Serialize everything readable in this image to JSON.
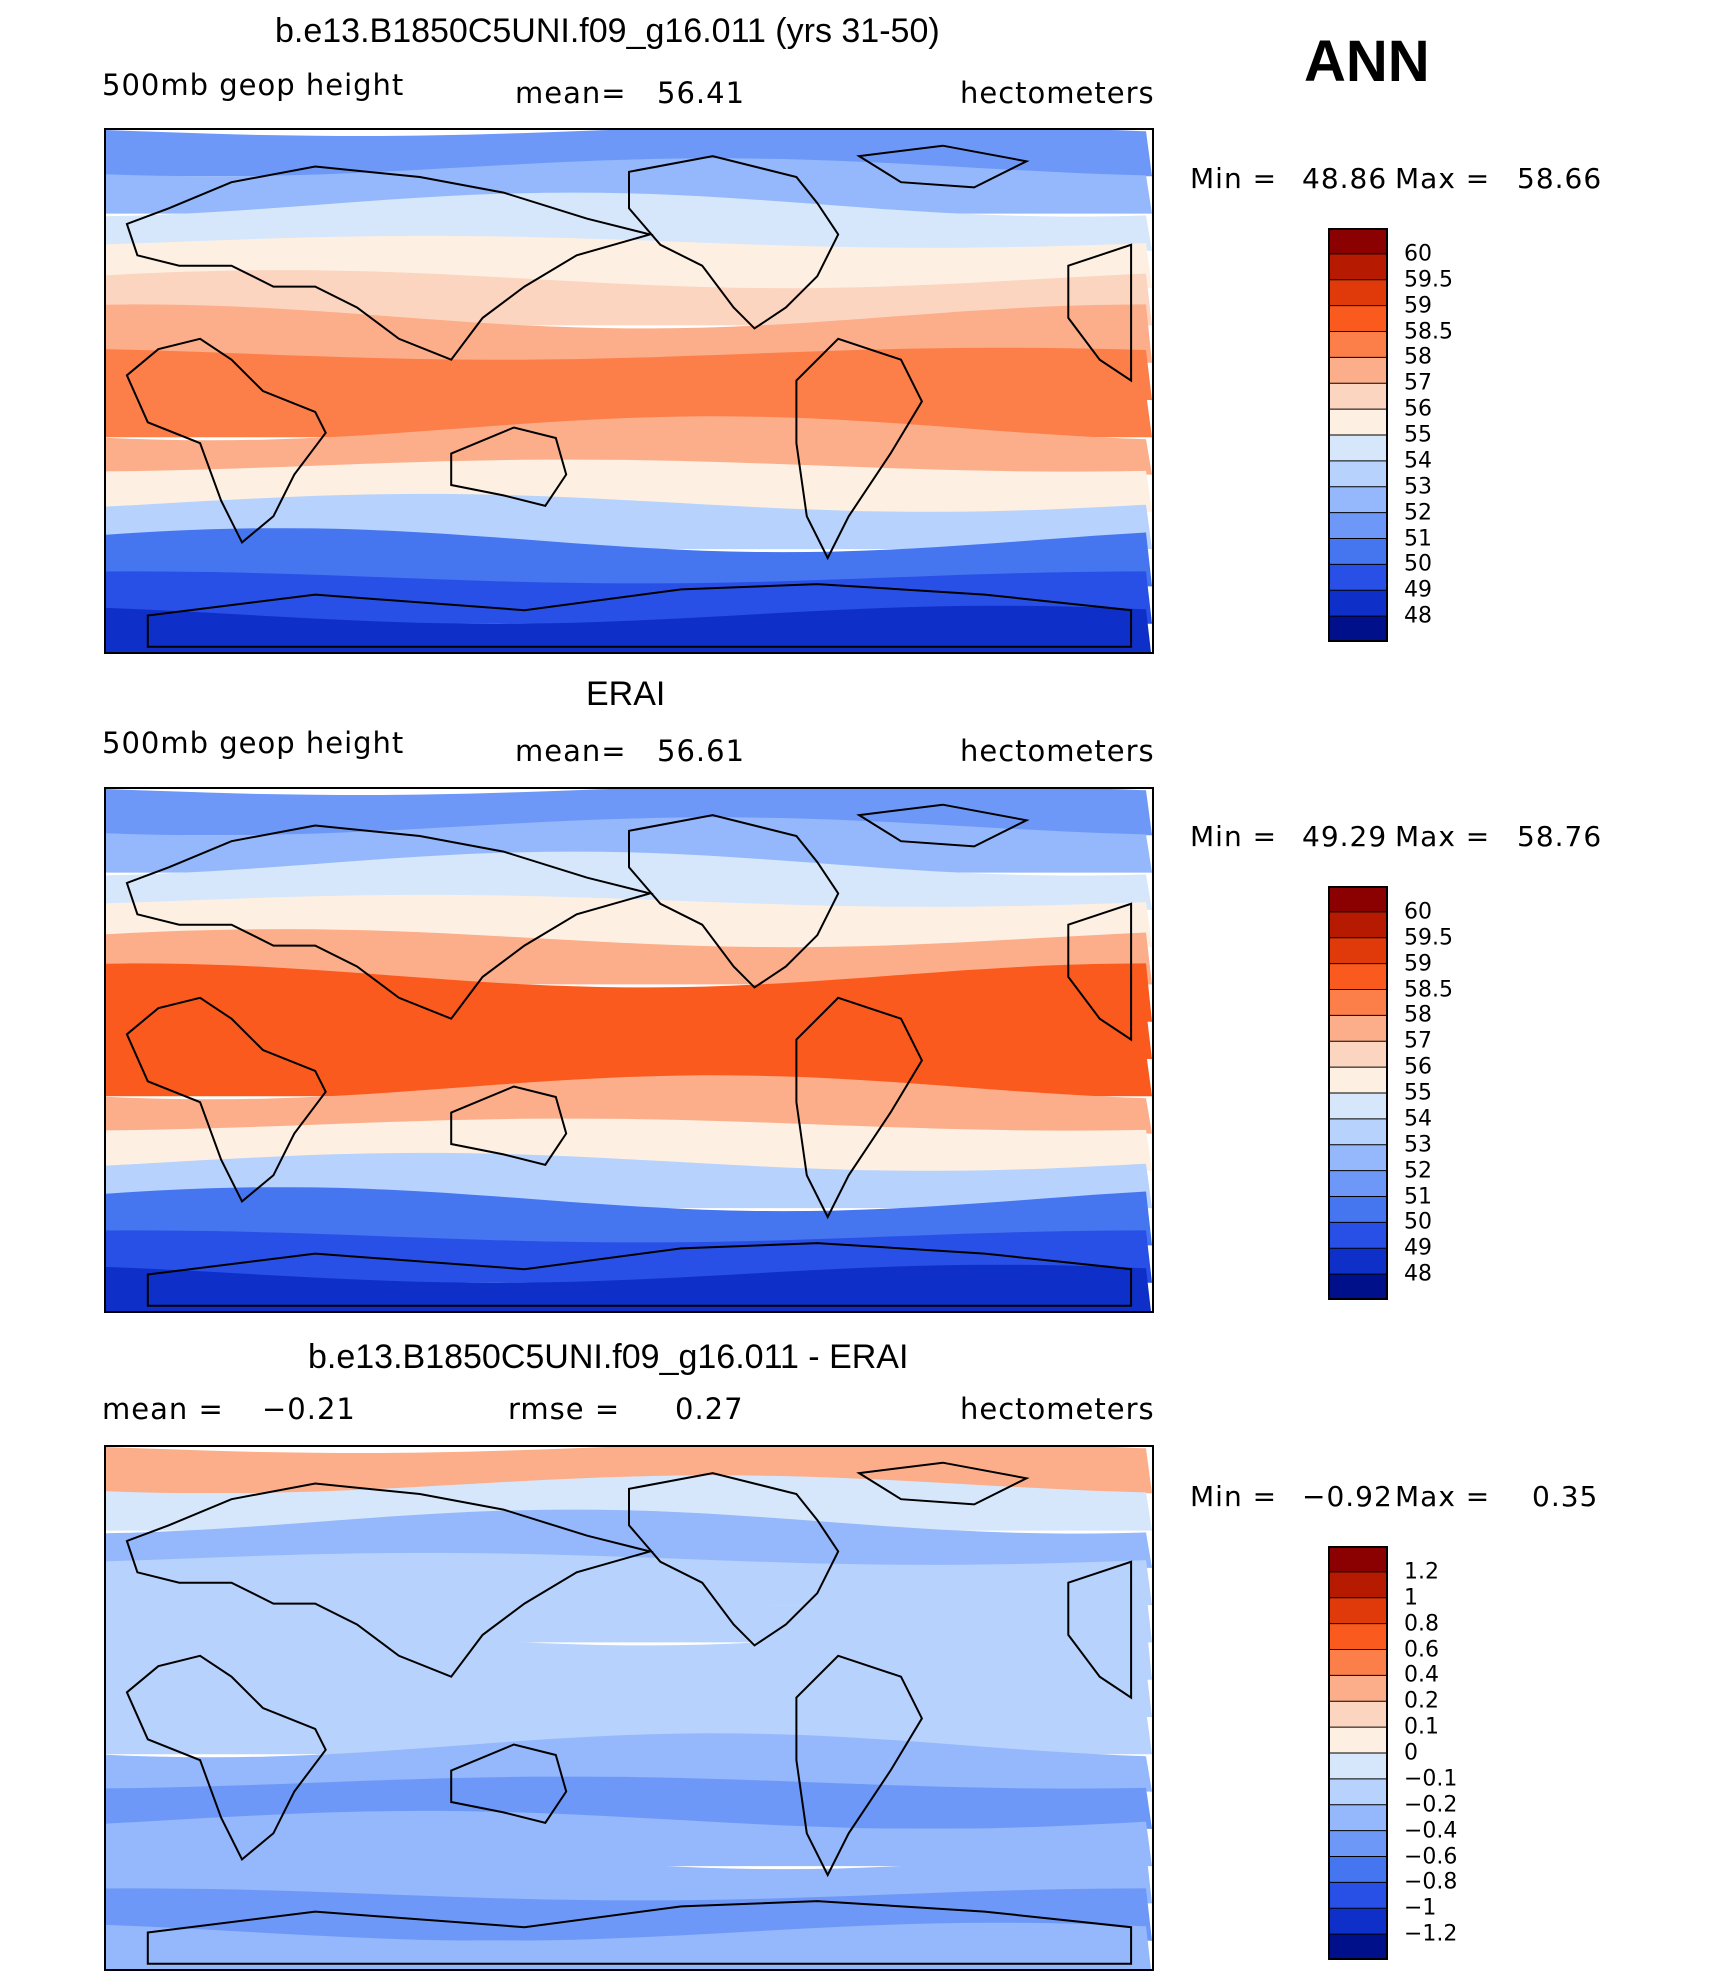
{
  "season": "ANN",
  "chart_data": [
    {
      "type": "heatmap",
      "title": "b.e13.B1850C5UNI.f09_g16.011 (yrs 31-50)",
      "variable": "500mb geop height",
      "mean_label": "mean=",
      "mean": "56.41",
      "units": "hectometers",
      "min_label": "Min =",
      "min": "48.86",
      "max_label": "Max =",
      "max": "58.66",
      "colorbar_levels": [
        "60",
        "59.5",
        "59",
        "58.5",
        "58",
        "57",
        "56",
        "55",
        "54",
        "53",
        "52",
        "51",
        "50",
        "49",
        "48"
      ],
      "colorbar_colors": [
        "#8b0000",
        "#b61a00",
        "#e03a0a",
        "#fb5a1e",
        "#fc7f4a",
        "#fcae8a",
        "#fcd5c0",
        "#fdf0e2",
        "#d6e7fb",
        "#b7d2fc",
        "#94b8fb",
        "#6d98f7",
        "#4675f0",
        "#2850e6",
        "#0f30c8",
        "#00108a"
      ],
      "band_colors": [
        "#6d98f7",
        "#94b8fb",
        "#d6e7fb",
        "#fdf0e2",
        "#fcd5c0",
        "#fcae8a",
        "#fc7f4a",
        "#fc7f4a",
        "#fcae8a",
        "#fdf0e2",
        "#b7d2fc",
        "#4675f0",
        "#2850e6",
        "#0f30c8"
      ]
    },
    {
      "type": "heatmap",
      "title": "ERAI",
      "variable": "500mb geop height",
      "mean_label": "mean=",
      "mean": "56.61",
      "units": "hectometers",
      "min_label": "Min =",
      "min": "49.29",
      "max_label": "Max =",
      "max": "58.76",
      "colorbar_levels": [
        "60",
        "59.5",
        "59",
        "58.5",
        "58",
        "57",
        "56",
        "55",
        "54",
        "53",
        "52",
        "51",
        "50",
        "49",
        "48"
      ],
      "colorbar_colors": [
        "#8b0000",
        "#b61a00",
        "#e03a0a",
        "#fb5a1e",
        "#fc7f4a",
        "#fcae8a",
        "#fcd5c0",
        "#fdf0e2",
        "#d6e7fb",
        "#b7d2fc",
        "#94b8fb",
        "#6d98f7",
        "#4675f0",
        "#2850e6",
        "#0f30c8",
        "#00108a"
      ],
      "band_colors": [
        "#6d98f7",
        "#94b8fb",
        "#d6e7fb",
        "#fdf0e2",
        "#fcae8a",
        "#fb5a1e",
        "#fb5a1e",
        "#fb5a1e",
        "#fcae8a",
        "#fdf0e2",
        "#b7d2fc",
        "#4675f0",
        "#2850e6",
        "#0f30c8"
      ]
    },
    {
      "type": "heatmap",
      "title": "b.e13.B1850C5UNI.f09_g16.011 - ERAI",
      "mean_label": "mean =",
      "mean": "−0.21",
      "rmse_label": "rmse =",
      "rmse": "0.27",
      "units": "hectometers",
      "min_label": "Min =",
      "min": "−0.92",
      "max_label": "Max =",
      "max": "0.35",
      "colorbar_levels": [
        "1.2",
        "1",
        "0.8",
        "0.6",
        "0.4",
        "0.2",
        "0.1",
        "0",
        "−0.1",
        "−0.2",
        "−0.4",
        "−0.6",
        "−0.8",
        "−1",
        "−1.2"
      ],
      "colorbar_colors": [
        "#8b0000",
        "#b61a00",
        "#e03a0a",
        "#fb5a1e",
        "#fc7f4a",
        "#fcae8a",
        "#fcd5c0",
        "#fdf0e2",
        "#d6e7fb",
        "#b7d2fc",
        "#94b8fb",
        "#6d98f7",
        "#4675f0",
        "#2850e6",
        "#0f30c8",
        "#00108a"
      ],
      "band_colors": [
        "#fcae8a",
        "#d6e7fb",
        "#94b8fb",
        "#b7d2fc",
        "#b7d2fc",
        "#b7d2fc",
        "#b7d2fc",
        "#b7d2fc",
        "#94b8fb",
        "#6d98f7",
        "#94b8fb",
        "#94b8fb",
        "#6d98f7",
        "#94b8fb"
      ]
    }
  ]
}
